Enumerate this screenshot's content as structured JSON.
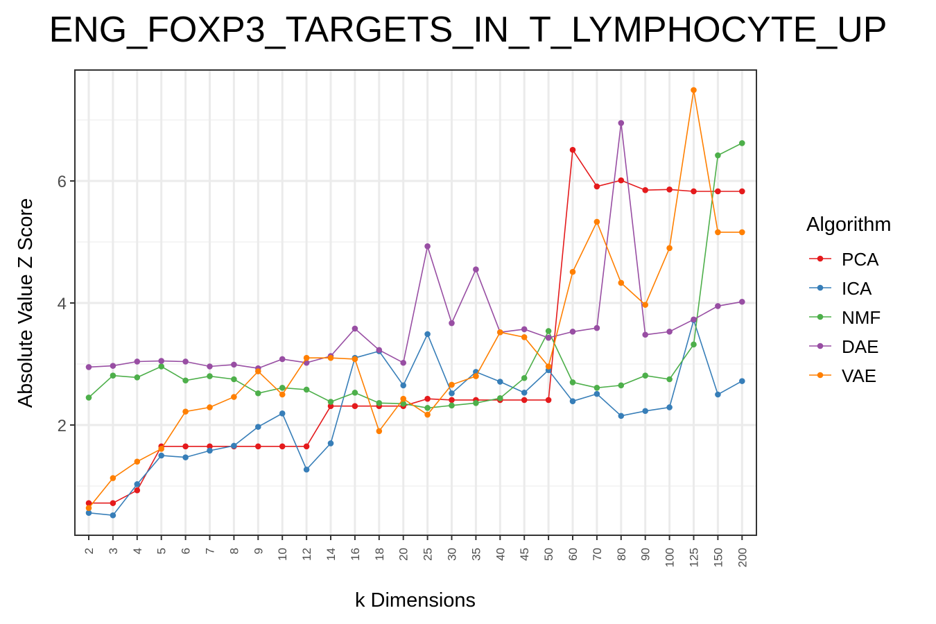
{
  "chart_data": {
    "type": "line",
    "title": "ENG_FOXP3_TARGETS_IN_T_LYMPHOCYTE_UP",
    "xlabel": "k Dimensions",
    "ylabel": "Absolute Value Z Score",
    "categories": [
      "2",
      "3",
      "4",
      "5",
      "6",
      "7",
      "8",
      "9",
      "10",
      "12",
      "14",
      "16",
      "18",
      "20",
      "25",
      "30",
      "35",
      "40",
      "45",
      "50",
      "60",
      "70",
      "80",
      "90",
      "100",
      "125",
      "150",
      "200"
    ],
    "yticks": [
      2,
      4,
      6
    ],
    "ylim": [
      0.25,
      7.8
    ],
    "grid": true,
    "legend": {
      "title": "Algorithm",
      "position": "right"
    },
    "series": [
      {
        "name": "PCA",
        "color": "#e41a1c",
        "values": [
          0.72,
          0.72,
          0.93,
          1.65,
          1.65,
          1.65,
          1.65,
          1.65,
          1.65,
          1.65,
          2.31,
          2.31,
          2.31,
          2.31,
          2.43,
          2.41,
          2.41,
          2.41,
          2.41,
          2.41,
          6.51,
          5.91,
          6.01,
          5.85,
          5.86,
          5.83,
          5.83,
          5.83
        ]
      },
      {
        "name": "ICA",
        "color": "#377eb8",
        "values": [
          0.56,
          0.52,
          1.03,
          1.5,
          1.47,
          1.58,
          1.66,
          1.97,
          2.19,
          1.27,
          1.7,
          3.1,
          3.21,
          2.65,
          3.49,
          2.52,
          2.87,
          2.71,
          2.53,
          2.9,
          2.39,
          2.51,
          2.15,
          2.23,
          2.29,
          3.72,
          2.5,
          2.72
        ]
      },
      {
        "name": "NMF",
        "color": "#4daf4a",
        "values": [
          2.45,
          2.81,
          2.78,
          2.96,
          2.73,
          2.8,
          2.75,
          2.52,
          2.61,
          2.58,
          2.38,
          2.53,
          2.36,
          2.35,
          2.28,
          2.32,
          2.36,
          2.44,
          2.77,
          3.54,
          2.7,
          2.61,
          2.65,
          2.81,
          2.75,
          3.32,
          6.42,
          6.62
        ]
      },
      {
        "name": "DAE",
        "color": "#984ea3",
        "values": [
          2.95,
          2.97,
          3.04,
          3.05,
          3.04,
          2.96,
          2.99,
          2.93,
          3.08,
          3.02,
          3.13,
          3.58,
          3.23,
          3.02,
          4.93,
          3.67,
          4.55,
          3.52,
          3.57,
          3.43,
          3.53,
          3.59,
          6.95,
          3.48,
          3.53,
          3.73,
          3.95,
          4.02
        ]
      },
      {
        "name": "VAE",
        "color": "#ff7f00",
        "values": [
          0.64,
          1.13,
          1.4,
          1.61,
          2.22,
          2.29,
          2.46,
          2.88,
          2.5,
          3.1,
          3.1,
          3.08,
          1.9,
          2.43,
          2.17,
          2.66,
          2.8,
          3.52,
          3.44,
          2.96,
          4.51,
          5.33,
          4.33,
          3.97,
          4.9,
          7.49,
          5.16,
          5.16
        ]
      }
    ]
  }
}
